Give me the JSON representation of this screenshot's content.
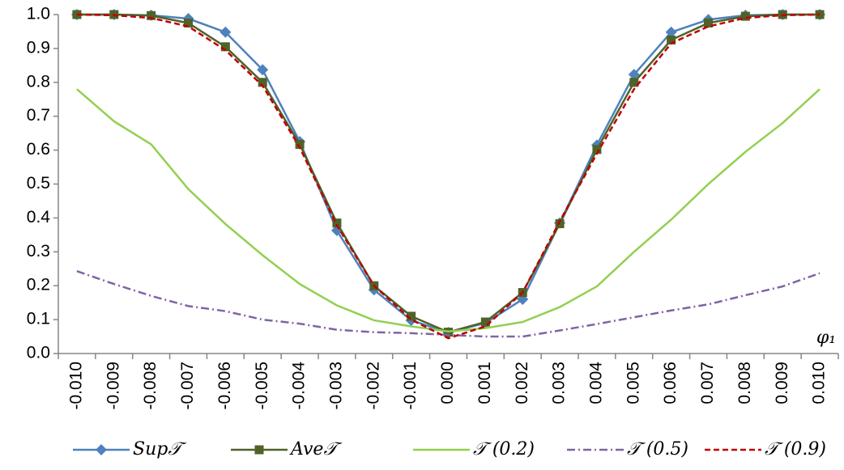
{
  "chart_data": {
    "type": "line",
    "x_label": "φ₁",
    "categories": [
      "-0.010",
      "-0.009",
      "-0.008",
      "-0.007",
      "-0.006",
      "-0.005",
      "-0.004",
      "-0.003",
      "-0.002",
      "-0.001",
      "0.000",
      "0.001",
      "0.002",
      "0.003",
      "0.004",
      "0.005",
      "0.006",
      "0.007",
      "0.008",
      "0.009",
      "0.010"
    ],
    "series": [
      {
        "name": "Sup𝒯",
        "color": "#4f81bd",
        "marker": "diamond",
        "dash": "solid",
        "values": [
          1.0,
          1.0,
          0.998,
          0.988,
          0.948,
          0.837,
          0.625,
          0.363,
          0.188,
          0.098,
          0.062,
          0.09,
          0.16,
          0.385,
          0.615,
          0.823,
          0.948,
          0.985,
          0.998,
          1.0,
          1.0
        ]
      },
      {
        "name": "Ave𝒯",
        "color": "#4f6228",
        "marker": "square",
        "dash": "solid",
        "values": [
          1.0,
          1.0,
          0.997,
          0.975,
          0.905,
          0.8,
          0.617,
          0.385,
          0.2,
          0.11,
          0.063,
          0.093,
          0.18,
          0.383,
          0.602,
          0.8,
          0.925,
          0.975,
          0.995,
          1.0,
          1.0
        ]
      },
      {
        "name": "𝒯 (0.2)",
        "color": "#92d050",
        "marker": "none",
        "dash": "solid",
        "values": [
          0.78,
          0.685,
          0.617,
          0.485,
          0.382,
          0.29,
          0.205,
          0.142,
          0.098,
          0.08,
          0.065,
          0.075,
          0.093,
          0.137,
          0.198,
          0.3,
          0.395,
          0.5,
          0.595,
          0.68,
          0.78
        ]
      },
      {
        "name": "𝒯 (0.5)",
        "color": "#8064a2",
        "marker": "none",
        "dash": "dash-dot",
        "values": [
          0.243,
          0.205,
          0.17,
          0.14,
          0.125,
          0.1,
          0.088,
          0.07,
          0.063,
          0.06,
          0.055,
          0.05,
          0.05,
          0.068,
          0.087,
          0.107,
          0.127,
          0.145,
          0.172,
          0.198,
          0.237
        ]
      },
      {
        "name": "𝒯 (0.9)",
        "color": "#c00000",
        "marker": "none",
        "dash": "dash",
        "values": [
          1.0,
          0.998,
          0.99,
          0.965,
          0.895,
          0.79,
          0.608,
          0.378,
          0.2,
          0.1,
          0.045,
          0.08,
          0.18,
          0.39,
          0.59,
          0.78,
          0.915,
          0.965,
          0.99,
          0.998,
          1.0
        ]
      }
    ],
    "ylim": [
      0,
      1
    ],
    "yticks": [
      {
        "value": 0,
        "label": "0.0"
      },
      0.1,
      0.2,
      0.3,
      0.4,
      0.5,
      0.6,
      0.7,
      0.8,
      0.9,
      {
        "value": 1,
        "label": "1.0"
      }
    ],
    "grid": false
  }
}
